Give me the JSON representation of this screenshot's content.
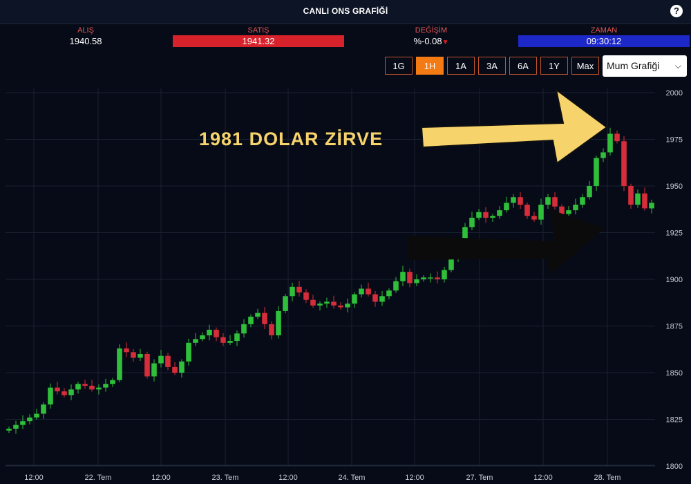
{
  "header": {
    "title": "CANLI ONS GRAFİĞİ",
    "help_icon": "question-icon"
  },
  "quotes": {
    "buy_label": "ALIŞ",
    "buy_value": "1940.58",
    "sell_label": "SATIŞ",
    "sell_value": "1941.32",
    "change_label": "DEĞİŞİM",
    "change_value": "%-0.08",
    "time_label": "ZAMAN",
    "time_value": "09:30:12",
    "colors": {
      "label": "#e35555",
      "sell_bg": "#d8222b",
      "time_bg": "#1d28c9",
      "down": "#e61e1e"
    }
  },
  "toolbar": {
    "ranges": [
      "1G",
      "1H",
      "1A",
      "3A",
      "6A",
      "1Y",
      "Max"
    ],
    "active": "1H",
    "chart_type": "Mum Grafiği"
  },
  "annotation": {
    "text": "1981 DOLAR ZİRVE",
    "color": "#f6d36b",
    "arrow_color": "#f6d36b"
  },
  "chart_data": {
    "type": "candlestick",
    "y_ticks": [
      1800,
      1825,
      1850,
      1875,
      1900,
      1925,
      1950,
      1975,
      2000
    ],
    "ylim": [
      1800,
      2000
    ],
    "x_tick_labels": [
      "12:00",
      "22. Tem",
      "12:00",
      "23. Tem",
      "12:00",
      "24. Tem",
      "12:00",
      "27. Tem",
      "12:00",
      "28. Tem"
    ],
    "up_color": "#2fbf3a",
    "down_color": "#d62d3a",
    "grid": true,
    "close": [
      1820,
      1822,
      1824,
      1826,
      1828,
      1833,
      1842,
      1840,
      1838,
      1841,
      1844,
      1843,
      1841,
      1842,
      1844,
      1846,
      1863,
      1861,
      1858,
      1860,
      1848,
      1855,
      1859,
      1853,
      1850,
      1856,
      1866,
      1868,
      1870,
      1873,
      1869,
      1866,
      1867,
      1871,
      1876,
      1880,
      1882,
      1876,
      1870,
      1883,
      1891,
      1896,
      1893,
      1889,
      1886,
      1887,
      1888,
      1886,
      1885,
      1887,
      1892,
      1895,
      1892,
      1888,
      1891,
      1894,
      1899,
      1904,
      1898,
      1900,
      1901,
      1901,
      1900,
      1905,
      1912,
      1920,
      1928,
      1933,
      1936,
      1933,
      1934,
      1937,
      1941,
      1944,
      1940,
      1934,
      1932,
      1940,
      1944,
      1939,
      1935,
      1937,
      1940,
      1944,
      1950,
      1965,
      1968,
      1978,
      1974,
      1950,
      1940,
      1946,
      1938,
      1941
    ]
  }
}
